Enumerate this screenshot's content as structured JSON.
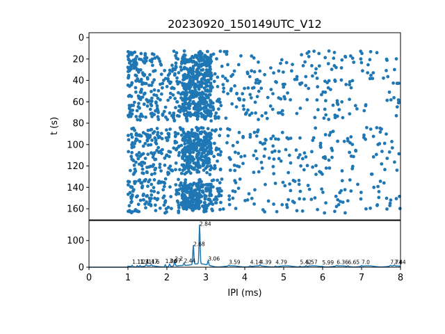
{
  "chart_data": [
    {
      "type": "scatter",
      "title": "20230920_150149UTC_V12",
      "xlabel": "",
      "ylabel": "t (s)",
      "xlim": [
        0,
        8
      ],
      "ylim": [
        170,
        -5
      ],
      "y_inverted": true,
      "yticks": [
        "0",
        "20",
        "40",
        "60",
        "80",
        "100",
        "120",
        "140",
        "160"
      ],
      "color": "#1f77b4",
      "bands": [
        {
          "t_range": [
            12,
            78
          ],
          "ipi_range": [
            1.0,
            8.0
          ],
          "density": "high near 2.4-3.1 ms"
        },
        {
          "t_range": [
            84,
            128
          ],
          "ipi_range": [
            1.1,
            8.0
          ],
          "density": "high near 2.4-3.1 ms"
        },
        {
          "t_range": [
            132,
            164
          ],
          "ipi_range": [
            1.0,
            8.0
          ],
          "density": "high near 2.4-3.1 ms"
        }
      ]
    },
    {
      "type": "line",
      "xlabel": "IPI (ms)",
      "ylabel": "",
      "xlim": [
        0,
        8
      ],
      "ylim": [
        0,
        175
      ],
      "xticks": [
        "0",
        "1",
        "2",
        "3",
        "4",
        "5",
        "6",
        "7",
        "8"
      ],
      "yticks": [
        "0",
        "100"
      ],
      "color": "#1f77b4",
      "peaks": [
        {
          "x": 1.11,
          "y": 8,
          "label": "1.11"
        },
        {
          "x": 1.24,
          "y": 8,
          "label": "1.24"
        },
        {
          "x": 1.31,
          "y": 8,
          "label": "1.31"
        },
        {
          "x": 1.47,
          "y": 9,
          "label": "1.47"
        },
        {
          "x": 1.6,
          "y": 8,
          "label": "1.6"
        },
        {
          "x": 1.96,
          "y": 11,
          "label": "1.96"
        },
        {
          "x": 2.07,
          "y": 12,
          "label": "2.07"
        },
        {
          "x": 2.2,
          "y": 20,
          "label": "2.2"
        },
        {
          "x": 2.44,
          "y": 12,
          "label": "2.44"
        },
        {
          "x": 2.68,
          "y": 75,
          "label": "2.68"
        },
        {
          "x": 2.84,
          "y": 150,
          "label": "2.84"
        },
        {
          "x": 3.06,
          "y": 20,
          "label": "3.06"
        },
        {
          "x": 3.59,
          "y": 6,
          "label": "3.59"
        },
        {
          "x": 4.14,
          "y": 6,
          "label": "4.14"
        },
        {
          "x": 4.39,
          "y": 7,
          "label": "4.39"
        },
        {
          "x": 4.79,
          "y": 6,
          "label": "4.79"
        },
        {
          "x": 5.42,
          "y": 6,
          "label": "5.42"
        },
        {
          "x": 5.57,
          "y": 6,
          "label": "5.57"
        },
        {
          "x": 5.99,
          "y": 5,
          "label": "5.99"
        },
        {
          "x": 6.36,
          "y": 6,
          "label": "6.36"
        },
        {
          "x": 6.65,
          "y": 6,
          "label": "6.65"
        },
        {
          "x": 7.0,
          "y": 6,
          "label": "7.0"
        },
        {
          "x": 7.74,
          "y": 6,
          "label": "7.74"
        },
        {
          "x": 7.84,
          "y": 6,
          "label": "7.84"
        }
      ]
    }
  ]
}
